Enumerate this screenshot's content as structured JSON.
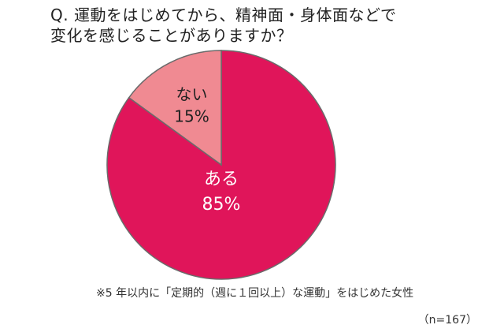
{
  "title": {
    "line1": "Q. 運動をはじめてから、精神面・身体面などで",
    "line2": "変化を感じることがありますか？"
  },
  "chart_data": {
    "type": "pie",
    "slices": [
      {
        "label": "ある",
        "value": 85,
        "value_label": "85%",
        "color": "#e0155a"
      },
      {
        "label": "ない",
        "value": 15,
        "value_label": "15%",
        "color": "#f08a92"
      }
    ],
    "start": "12 o'clock",
    "direction": "clockwise"
  },
  "footnote": "※5 年以内に「定期的（週に１回以上）な運動」をはじめた女性",
  "sample_size": "（n=167）"
}
